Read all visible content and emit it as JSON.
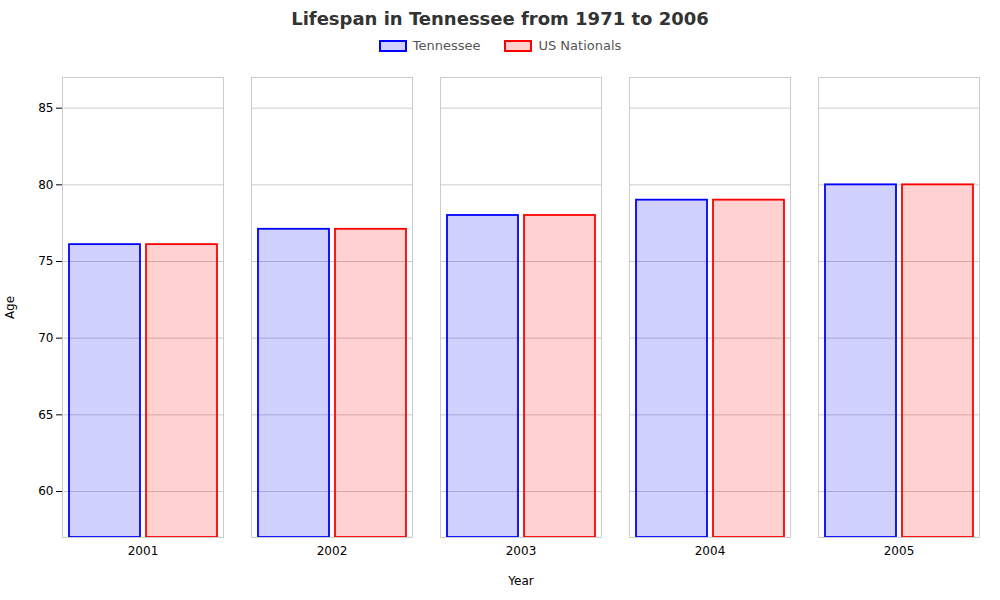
{
  "chart_data": {
    "type": "bar",
    "title": "Lifespan in Tennessee from 1971 to 2006",
    "xlabel": "Year",
    "ylabel": "Age",
    "categories": [
      "2001",
      "2002",
      "2003",
      "2004",
      "2005"
    ],
    "series": [
      {
        "name": "Tennessee",
        "color": "#0000ff",
        "values": [
          76.1,
          77.1,
          78.0,
          79.0,
          80.0
        ]
      },
      {
        "name": "US Nationals",
        "color": "#ff0000",
        "values": [
          76.1,
          77.1,
          78.0,
          79.0,
          80.0
        ]
      }
    ],
    "ylim": [
      57,
      87
    ],
    "yticks": [
      60,
      65,
      70,
      75,
      80,
      85
    ],
    "grid": true,
    "legend": "top"
  }
}
